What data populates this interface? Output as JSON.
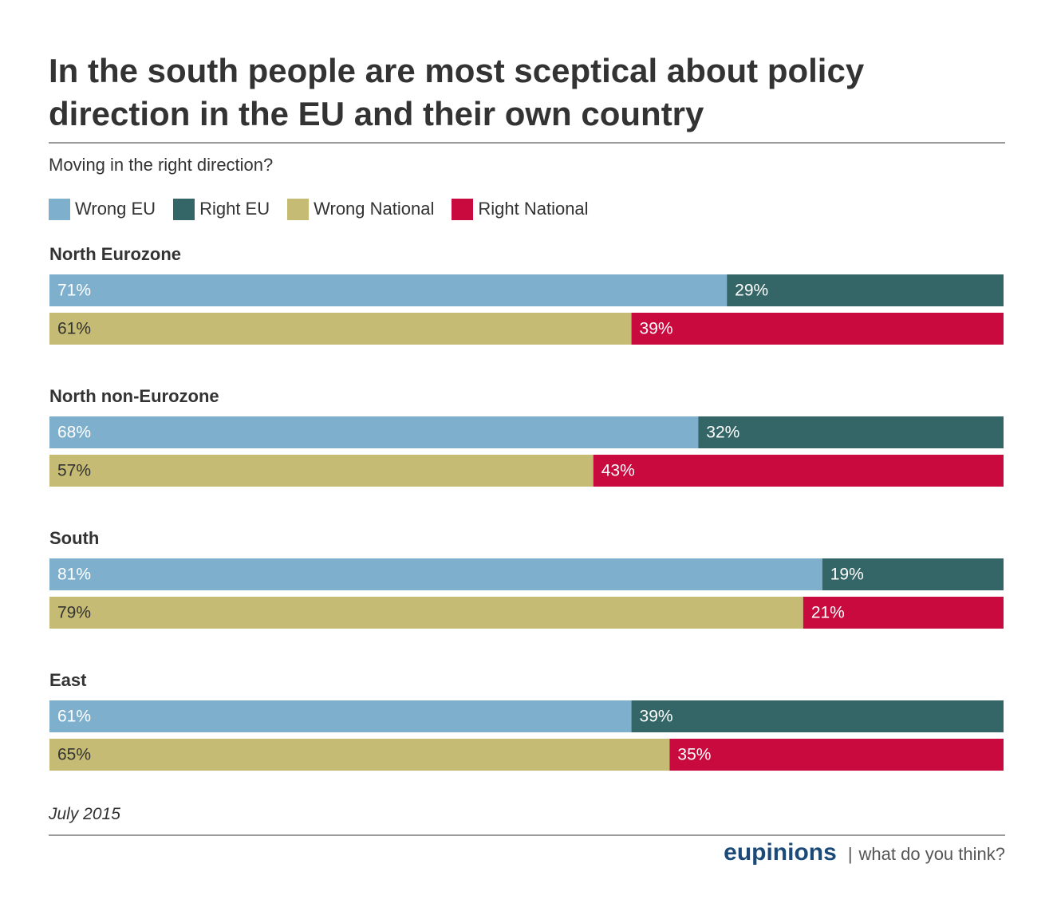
{
  "header": {
    "title": "In the south people are most sceptical about policy direction in the EU and their own country",
    "subtitle": "Moving in the right direction?"
  },
  "legend": [
    {
      "label": "Wrong EU",
      "color": "#7eb0cd"
    },
    {
      "label": "Right EU",
      "color": "#356667"
    },
    {
      "label": "Wrong National",
      "color": "#c5bb74"
    },
    {
      "label": "Right National",
      "color": "#c80a3f"
    }
  ],
  "chart_data": {
    "type": "bar",
    "orientation": "horizontal",
    "stacked": true,
    "percent_total": 100,
    "groups": [
      {
        "name": "North Eurozone",
        "eu": {
          "wrong": 71,
          "right": 29
        },
        "national": {
          "wrong": 61,
          "right": 39
        }
      },
      {
        "name": "North non-Eurozone",
        "eu": {
          "wrong": 68,
          "right": 32
        },
        "national": {
          "wrong": 57,
          "right": 43
        }
      },
      {
        "name": "South",
        "eu": {
          "wrong": 81,
          "right": 19
        },
        "national": {
          "wrong": 79,
          "right": 21
        }
      },
      {
        "name": "East",
        "eu": {
          "wrong": 61,
          "right": 39
        },
        "national": {
          "wrong": 65,
          "right": 35
        }
      }
    ],
    "colors": {
      "wrong_eu": "#7eb0cd",
      "right_eu": "#356667",
      "wrong_national": "#c5bb74",
      "right_national": "#c80a3f"
    },
    "label_colors": {
      "wrong_eu": "#ffffff",
      "right_eu": "#ffffff",
      "wrong_national": "#333333",
      "right_national": "#ffffff"
    },
    "value_suffix": "%"
  },
  "footer": {
    "date": "July 2015",
    "brand": "eupinions",
    "separator": "|",
    "tagline": "what do you think?"
  }
}
